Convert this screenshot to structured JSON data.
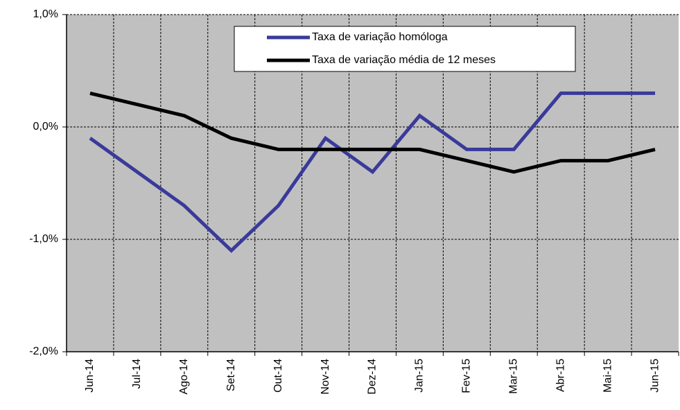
{
  "chart_data": {
    "type": "line",
    "categories": [
      "Jun-14",
      "Jul-14",
      "Ago-14",
      "Set-14",
      "Out-14",
      "Nov-14",
      "Dez-14",
      "Jan-15",
      "Fev-15",
      "Mar-15",
      "Abr-15",
      "Mai-15",
      "Jun-15"
    ],
    "series": [
      {
        "name": "Taxa de variação homóloga",
        "color": "#3a3a9a",
        "values": [
          -0.1,
          -0.4,
          -0.7,
          -1.1,
          -0.7,
          -0.1,
          -0.4,
          0.1,
          -0.2,
          -0.2,
          0.3,
          0.3,
          0.3
        ]
      },
      {
        "name": "Taxa de variação média de 12 meses",
        "color": "#000000",
        "values": [
          0.3,
          0.2,
          0.1,
          -0.1,
          -0.2,
          -0.2,
          -0.2,
          -0.2,
          -0.3,
          -0.4,
          -0.3,
          -0.3,
          -0.2
        ]
      }
    ],
    "ylim": [
      -2,
      1
    ],
    "yticks": [
      {
        "value": -2,
        "label": "-2,0%"
      },
      {
        "value": -1,
        "label": "-1,0%"
      },
      {
        "value": 0,
        "label": "0,0%"
      },
      {
        "value": 1,
        "label": "1,0%"
      }
    ],
    "grid": true
  }
}
